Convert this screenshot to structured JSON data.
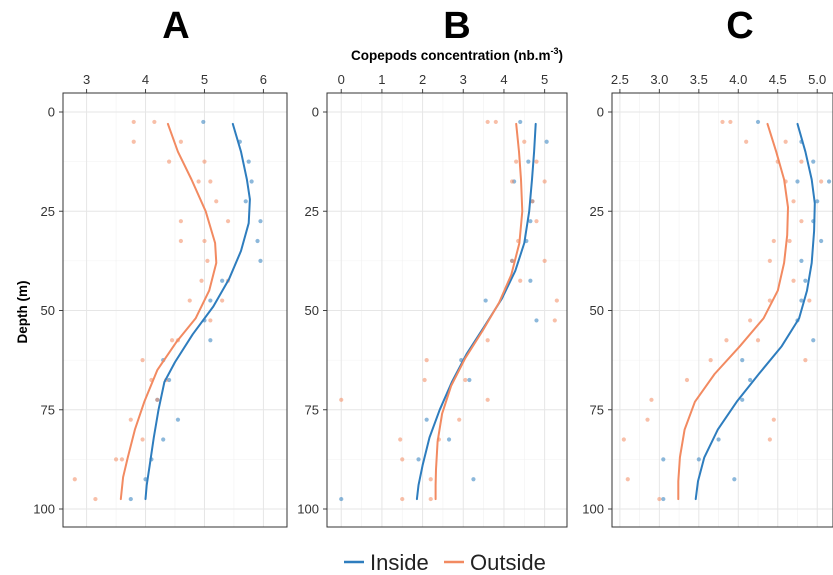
{
  "figure": {
    "shared_xlabel": "Copepods concentration (nb.m",
    "shared_xlabel_sup": "-3",
    "shared_xlabel_end": ")",
    "ylabel": "Depth (m)"
  },
  "legend": {
    "items": [
      {
        "label": "Inside",
        "color": "#2E7DBE"
      },
      {
        "label": "Outside",
        "color": "#F28A61"
      }
    ]
  },
  "chart_data": [
    {
      "type": "scatter",
      "panel": "A",
      "title": "A",
      "x_ticks": [
        "3",
        "4",
        "5",
        "6"
      ],
      "x_tick_values": [
        3,
        4,
        5,
        6
      ],
      "xlim": [
        2.6,
        6.4
      ],
      "y_ticks": [
        "0",
        "25",
        "50",
        "75",
        "100"
      ],
      "y_tick_values": [
        0,
        25,
        50,
        75,
        100
      ],
      "ylim": [
        100,
        0
      ],
      "ylabel": "Depth (m)",
      "grid": true,
      "series": [
        {
          "name": "Inside",
          "color": "#2E7DBE",
          "points": [
            [
              4.98,
              2.5
            ],
            [
              5.6,
              7.5
            ],
            [
              5.75,
              12.5
            ],
            [
              5.8,
              17.5
            ],
            [
              5.7,
              22.5
            ],
            [
              5.95,
              27.5
            ],
            [
              5.9,
              32.5
            ],
            [
              5.95,
              37.5
            ],
            [
              5.3,
              42.5
            ],
            [
              5.1,
              47.5
            ],
            [
              5.0,
              52.5
            ],
            [
              5.1,
              57.5
            ],
            [
              4.3,
              62.5
            ],
            [
              4.4,
              67.5
            ],
            [
              4.2,
              72.5
            ],
            [
              4.55,
              77.5
            ],
            [
              4.3,
              82.5
            ],
            [
              4.1,
              87.5
            ],
            [
              4.0,
              92.5
            ],
            [
              3.75,
              97.5
            ]
          ],
          "fit": [
            [
              5.48,
              3
            ],
            [
              5.62,
              10
            ],
            [
              5.72,
              17
            ],
            [
              5.77,
              22
            ],
            [
              5.75,
              28
            ],
            [
              5.62,
              35
            ],
            [
              5.42,
              42
            ],
            [
              5.15,
              49
            ],
            [
              4.8,
              56
            ],
            [
              4.5,
              63
            ],
            [
              4.32,
              68
            ],
            [
              4.22,
              75
            ],
            [
              4.14,
              82
            ],
            [
              4.07,
              89
            ],
            [
              4.02,
              94
            ],
            [
              4.0,
              97.5
            ]
          ]
        },
        {
          "name": "Outside",
          "color": "#F28A61",
          "points": [
            [
              3.8,
              2.5
            ],
            [
              4.15,
              2.5
            ],
            [
              3.8,
              7.5
            ],
            [
              4.6,
              7.5
            ],
            [
              5.0,
              12.5
            ],
            [
              4.4,
              12.5
            ],
            [
              4.9,
              17.5
            ],
            [
              5.1,
              17.5
            ],
            [
              5.2,
              22.5
            ],
            [
              5.4,
              27.5
            ],
            [
              4.6,
              27.5
            ],
            [
              4.6,
              32.5
            ],
            [
              5.0,
              32.5
            ],
            [
              5.05,
              37.5
            ],
            [
              4.95,
              42.5
            ],
            [
              5.4,
              42.5
            ],
            [
              5.3,
              47.5
            ],
            [
              4.75,
              47.5
            ],
            [
              5.1,
              52.5
            ],
            [
              4.55,
              57.5
            ],
            [
              4.45,
              57.5
            ],
            [
              3.95,
              62.5
            ],
            [
              4.1,
              67.5
            ],
            [
              4.35,
              67.5
            ],
            [
              4.2,
              72.5
            ],
            [
              3.75,
              77.5
            ],
            [
              3.95,
              82.5
            ],
            [
              3.5,
              87.5
            ],
            [
              3.6,
              87.5
            ],
            [
              2.8,
              92.5
            ],
            [
              3.15,
              97.5
            ]
          ],
          "fit": [
            [
              4.38,
              3
            ],
            [
              4.55,
              10
            ],
            [
              4.78,
              17
            ],
            [
              5.02,
              25
            ],
            [
              5.18,
              33
            ],
            [
              5.2,
              38
            ],
            [
              5.08,
              45
            ],
            [
              4.85,
              52
            ],
            [
              4.52,
              58
            ],
            [
              4.2,
              65
            ],
            [
              3.98,
              73
            ],
            [
              3.82,
              80
            ],
            [
              3.7,
              87
            ],
            [
              3.62,
              92
            ],
            [
              3.58,
              97.5
            ]
          ]
        }
      ]
    },
    {
      "type": "scatter",
      "panel": "B",
      "title": "B",
      "x_ticks": [
        "0",
        "1",
        "2",
        "3",
        "4",
        "5"
      ],
      "x_tick_values": [
        0,
        1,
        2,
        3,
        4,
        5
      ],
      "xlim": [
        -0.35,
        5.55
      ],
      "y_ticks": [
        "0",
        "25",
        "50",
        "75",
        "100"
      ],
      "y_tick_values": [
        0,
        25,
        50,
        75,
        100
      ],
      "ylim": [
        100,
        0
      ],
      "ylabel": "Depth (m)",
      "grid": true,
      "series": [
        {
          "name": "Inside",
          "color": "#2E7DBE",
          "points": [
            [
              4.4,
              2.5
            ],
            [
              5.05,
              7.5
            ],
            [
              4.6,
              12.5
            ],
            [
              4.25,
              17.5
            ],
            [
              4.7,
              22.5
            ],
            [
              4.65,
              27.5
            ],
            [
              4.55,
              32.5
            ],
            [
              4.2,
              37.5
            ],
            [
              4.65,
              42.5
            ],
            [
              3.55,
              47.5
            ],
            [
              4.8,
              52.5
            ],
            [
              2.95,
              62.5
            ],
            [
              3.15,
              67.5
            ],
            [
              2.1,
              77.5
            ],
            [
              2.65,
              82.5
            ],
            [
              1.9,
              87.5
            ],
            [
              3.25,
              92.5
            ],
            [
              0.0,
              97.5
            ]
          ],
          "fit": [
            [
              4.78,
              3
            ],
            [
              4.74,
              10
            ],
            [
              4.69,
              17
            ],
            [
              4.62,
              25
            ],
            [
              4.5,
              33
            ],
            [
              4.28,
              40
            ],
            [
              3.95,
              47
            ],
            [
              3.52,
              54
            ],
            [
              3.08,
              61
            ],
            [
              2.72,
              68
            ],
            [
              2.42,
              75
            ],
            [
              2.17,
              82
            ],
            [
              2.0,
              89
            ],
            [
              1.9,
              94
            ],
            [
              1.86,
              97.5
            ]
          ]
        },
        {
          "name": "Outside",
          "color": "#F28A61",
          "points": [
            [
              3.6,
              2.5
            ],
            [
              3.8,
              2.5
            ],
            [
              4.5,
              7.5
            ],
            [
              4.3,
              12.5
            ],
            [
              4.8,
              12.5
            ],
            [
              4.2,
              17.5
            ],
            [
              5.0,
              17.5
            ],
            [
              4.7,
              22.5
            ],
            [
              4.8,
              27.5
            ],
            [
              4.35,
              32.5
            ],
            [
              4.2,
              37.5
            ],
            [
              5.0,
              37.5
            ],
            [
              4.4,
              42.5
            ],
            [
              5.3,
              47.5
            ],
            [
              5.25,
              52.5
            ],
            [
              3.6,
              57.5
            ],
            [
              2.1,
              62.5
            ],
            [
              2.05,
              67.5
            ],
            [
              3.05,
              67.5
            ],
            [
              0.0,
              72.5
            ],
            [
              3.6,
              72.5
            ],
            [
              2.9,
              77.5
            ],
            [
              1.45,
              82.5
            ],
            [
              2.4,
              82.5
            ],
            [
              1.5,
              87.5
            ],
            [
              2.2,
              92.5
            ],
            [
              1.5,
              97.5
            ],
            [
              2.2,
              97.5
            ]
          ],
          "fit": [
            [
              4.3,
              3
            ],
            [
              4.37,
              10
            ],
            [
              4.42,
              17
            ],
            [
              4.45,
              25
            ],
            [
              4.38,
              33
            ],
            [
              4.18,
              41
            ],
            [
              3.88,
              48
            ],
            [
              3.48,
              55
            ],
            [
              3.05,
              62
            ],
            [
              2.7,
              69
            ],
            [
              2.48,
              76
            ],
            [
              2.37,
              83
            ],
            [
              2.33,
              90
            ],
            [
              2.32,
              94
            ],
            [
              2.32,
              97.5
            ]
          ]
        }
      ]
    },
    {
      "type": "scatter",
      "panel": "C",
      "title": "C",
      "x_ticks": [
        "2.5",
        "3.0",
        "3.5",
        "4.0",
        "4.5",
        "5.0"
      ],
      "x_tick_values": [
        2.5,
        3.0,
        3.5,
        4.0,
        4.5,
        5.0
      ],
      "xlim": [
        2.4,
        5.2
      ],
      "y_ticks": [
        "0",
        "25",
        "50",
        "75",
        "100"
      ],
      "y_tick_values": [
        0,
        25,
        50,
        75,
        100
      ],
      "ylim": [
        100,
        0
      ],
      "ylabel": "Depth (m)",
      "grid": true,
      "series": [
        {
          "name": "Inside",
          "color": "#2E7DBE",
          "points": [
            [
              4.25,
              2.5
            ],
            [
              4.8,
              7.5
            ],
            [
              4.95,
              12.5
            ],
            [
              4.75,
              17.5
            ],
            [
              5.15,
              17.5
            ],
            [
              5.0,
              22.5
            ],
            [
              4.95,
              27.5
            ],
            [
              5.05,
              32.5
            ],
            [
              4.8,
              37.5
            ],
            [
              4.85,
              42.5
            ],
            [
              4.8,
              47.5
            ],
            [
              4.75,
              52.5
            ],
            [
              4.95,
              57.5
            ],
            [
              4.05,
              62.5
            ],
            [
              4.15,
              67.5
            ],
            [
              4.05,
              72.5
            ],
            [
              3.75,
              82.5
            ],
            [
              3.05,
              87.5
            ],
            [
              3.5,
              87.5
            ],
            [
              3.95,
              92.5
            ],
            [
              3.05,
              97.5
            ]
          ],
          "fit": [
            [
              4.75,
              3
            ],
            [
              4.85,
              10
            ],
            [
              4.93,
              17
            ],
            [
              4.97,
              23
            ],
            [
              4.96,
              30
            ],
            [
              4.93,
              38
            ],
            [
              4.87,
              45
            ],
            [
              4.77,
              52
            ],
            [
              4.55,
              59
            ],
            [
              4.26,
              66
            ],
            [
              3.98,
              73
            ],
            [
              3.74,
              80
            ],
            [
              3.57,
              87
            ],
            [
              3.49,
              93
            ],
            [
              3.46,
              97.5
            ]
          ]
        },
        {
          "name": "Outside",
          "color": "#F28A61",
          "points": [
            [
              3.8,
              2.5
            ],
            [
              3.9,
              2.5
            ],
            [
              4.1,
              7.5
            ],
            [
              4.6,
              7.5
            ],
            [
              4.8,
              12.5
            ],
            [
              4.5,
              12.5
            ],
            [
              4.6,
              17.5
            ],
            [
              5.05,
              17.5
            ],
            [
              4.7,
              22.5
            ],
            [
              5.22,
              22.5
            ],
            [
              4.8,
              27.5
            ],
            [
              4.45,
              32.5
            ],
            [
              4.65,
              32.5
            ],
            [
              4.4,
              37.5
            ],
            [
              4.7,
              42.5
            ],
            [
              4.4,
              47.5
            ],
            [
              4.9,
              47.5
            ],
            [
              4.15,
              52.5
            ],
            [
              3.85,
              57.5
            ],
            [
              4.25,
              57.5
            ],
            [
              3.65,
              62.5
            ],
            [
              4.85,
              62.5
            ],
            [
              3.35,
              67.5
            ],
            [
              2.9,
              72.5
            ],
            [
              2.85,
              77.5
            ],
            [
              4.45,
              77.5
            ],
            [
              2.55,
              82.5
            ],
            [
              4.4,
              82.5
            ],
            [
              2.6,
              92.5
            ],
            [
              3.0,
              97.5
            ]
          ],
          "fit": [
            [
              4.37,
              3
            ],
            [
              4.48,
              10
            ],
            [
              4.58,
              17
            ],
            [
              4.63,
              24
            ],
            [
              4.62,
              31
            ],
            [
              4.58,
              38
            ],
            [
              4.5,
              45
            ],
            [
              4.32,
              52
            ],
            [
              4.02,
              59
            ],
            [
              3.7,
              66
            ],
            [
              3.45,
              73
            ],
            [
              3.32,
              80
            ],
            [
              3.26,
              87
            ],
            [
              3.24,
              93
            ],
            [
              3.24,
              97.5
            ]
          ]
        }
      ]
    }
  ]
}
